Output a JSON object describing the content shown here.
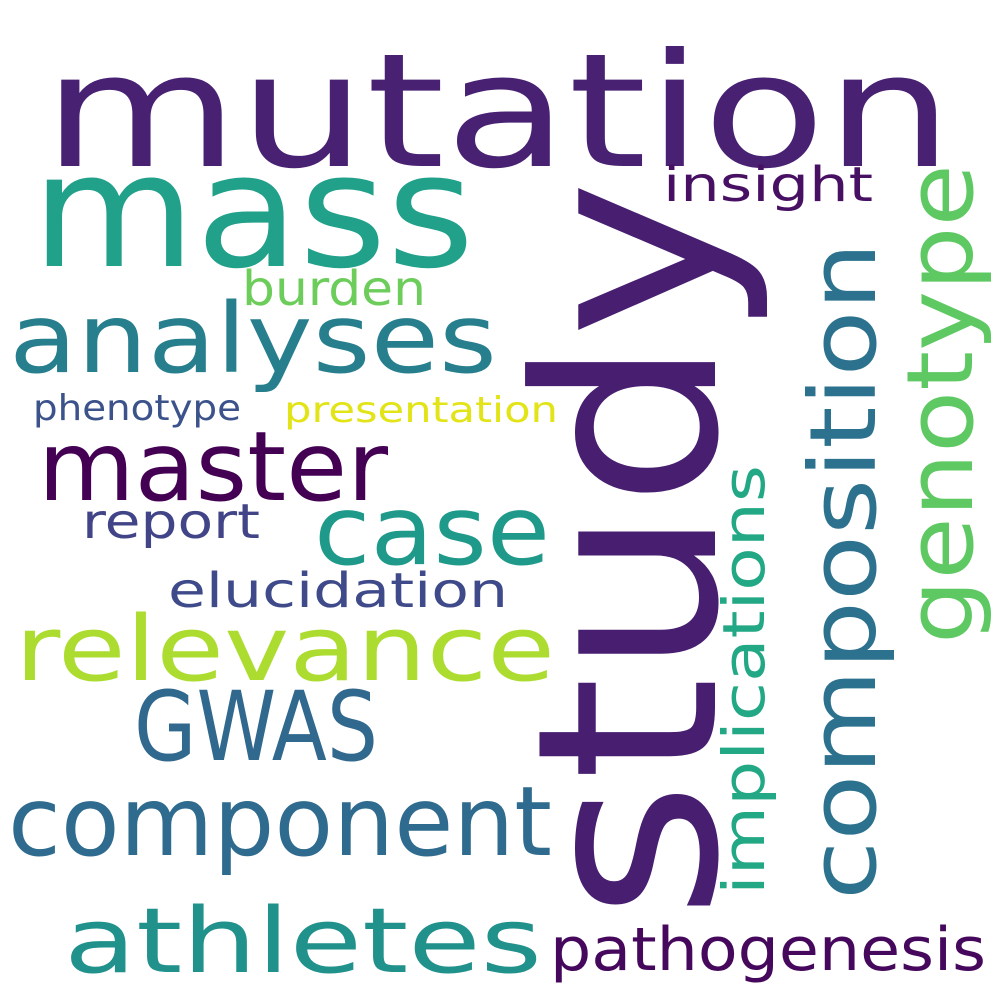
{
  "words": [
    {
      "id": "mutation",
      "text": "mutation",
      "color": "#482173",
      "vertical": false
    },
    {
      "id": "mass",
      "text": "mass",
      "color": "#21a08a",
      "vertical": false
    },
    {
      "id": "study",
      "text": "study",
      "color": "#481f70",
      "vertical": true
    },
    {
      "id": "analyses",
      "text": "analyses",
      "color": "#277f8e",
      "vertical": false
    },
    {
      "id": "master",
      "text": "master",
      "color": "#440154",
      "vertical": false
    },
    {
      "id": "case",
      "text": "case",
      "color": "#1f9a8a",
      "vertical": false
    },
    {
      "id": "relevance",
      "text": "relevance",
      "color": "#addc30",
      "vertical": false
    },
    {
      "id": "gwas",
      "text": "GWAS",
      "color": "#31688e",
      "vertical": false
    },
    {
      "id": "component",
      "text": "component",
      "color": "#2f6b8e",
      "vertical": false
    },
    {
      "id": "athletes",
      "text": "athletes",
      "color": "#21918c",
      "vertical": false
    },
    {
      "id": "pathogenesis",
      "text": "pathogenesis",
      "color": "#46085c",
      "vertical": false
    },
    {
      "id": "composition",
      "text": "composition",
      "color": "#2c728e",
      "vertical": true
    },
    {
      "id": "genotype",
      "text": "genotype",
      "color": "#5ec962",
      "vertical": true
    },
    {
      "id": "implications",
      "text": "implications",
      "color": "#22a884",
      "vertical": true
    },
    {
      "id": "insight",
      "text": "insight",
      "color": "#471063",
      "vertical": false
    },
    {
      "id": "burden",
      "text": "burden",
      "color": "#6ccd5a",
      "vertical": false
    },
    {
      "id": "phenotype",
      "text": "phenotype",
      "color": "#3b528b",
      "vertical": false
    },
    {
      "id": "presentation",
      "text": "presentation",
      "color": "#e2e418",
      "vertical": false
    },
    {
      "id": "report",
      "text": "report",
      "color": "#414487",
      "vertical": false
    },
    {
      "id": "elucidation",
      "text": "elucidation",
      "color": "#3e4a89",
      "vertical": false
    }
  ]
}
